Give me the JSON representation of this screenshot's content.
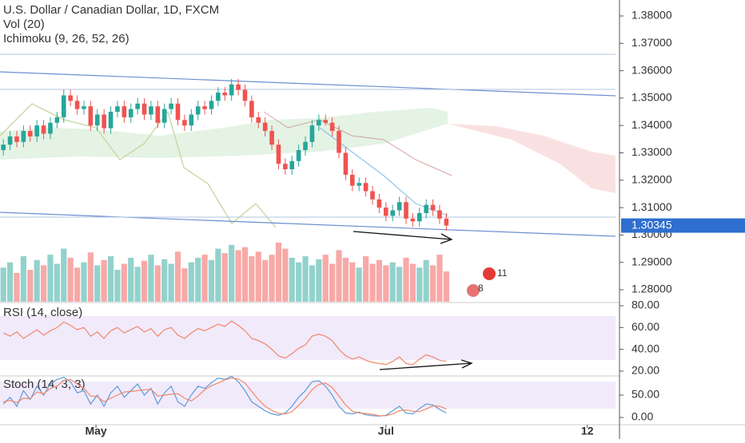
{
  "chart_data": [
    {
      "type": "candlestick",
      "title": "U.S. Dollar / Canadian Dollar, 1D, FXCM",
      "indicators": [
        "Ichimoku (9, 26, 52, 26)"
      ],
      "up_color": "#26a69a",
      "down_color": "#ef5350",
      "open": [
        1.331,
        1.333,
        1.336,
        1.334,
        1.338,
        1.336,
        1.34,
        1.337,
        1.341,
        1.343,
        1.351,
        1.349,
        1.346,
        1.347,
        1.34,
        1.344,
        1.339,
        1.345,
        1.347,
        1.343,
        1.346,
        1.348,
        1.344,
        1.347,
        1.341,
        1.346,
        1.348,
        1.342,
        1.34,
        1.344,
        1.347,
        1.346,
        1.349,
        1.352,
        1.351,
        1.355,
        1.353,
        1.349,
        1.343,
        1.341,
        1.338,
        1.333,
        1.326,
        1.324,
        1.327,
        1.331,
        1.334,
        1.34,
        1.342,
        1.341,
        1.338,
        1.33,
        1.322,
        1.318,
        1.319,
        1.316,
        1.313,
        1.31,
        1.307,
        1.309,
        1.312,
        1.306,
        1.305,
        1.308,
        1.311,
        1.309,
        1.306
      ],
      "high": [
        1.335,
        1.338,
        1.338,
        1.34,
        1.34,
        1.342,
        1.342,
        1.343,
        1.345,
        1.353,
        1.353,
        1.351,
        1.349,
        1.349,
        1.346,
        1.346,
        1.347,
        1.349,
        1.349,
        1.348,
        1.35,
        1.35,
        1.349,
        1.349,
        1.348,
        1.35,
        1.35,
        1.344,
        1.346,
        1.349,
        1.349,
        1.351,
        1.354,
        1.354,
        1.357,
        1.357,
        1.355,
        1.351,
        1.345,
        1.343,
        1.34,
        1.335,
        1.328,
        1.329,
        1.333,
        1.336,
        1.342,
        1.344,
        1.344,
        1.343,
        1.34,
        1.332,
        1.324,
        1.321,
        1.321,
        1.318,
        1.315,
        1.312,
        1.311,
        1.314,
        1.314,
        1.308,
        1.31,
        1.313,
        1.313,
        1.311,
        1.308
      ],
      "low": [
        1.329,
        1.331,
        1.332,
        1.332,
        1.334,
        1.334,
        1.335,
        1.335,
        1.339,
        1.341,
        1.347,
        1.344,
        1.344,
        1.338,
        1.338,
        1.337,
        1.337,
        1.343,
        1.341,
        1.341,
        1.344,
        1.342,
        1.342,
        1.339,
        1.339,
        1.344,
        1.34,
        1.338,
        1.338,
        1.342,
        1.344,
        1.344,
        1.347,
        1.349,
        1.349,
        1.351,
        1.347,
        1.341,
        1.339,
        1.336,
        1.331,
        1.324,
        1.322,
        1.322,
        1.325,
        1.329,
        1.332,
        1.338,
        1.34,
        1.336,
        1.328,
        1.32,
        1.316,
        1.316,
        1.314,
        1.311,
        1.308,
        1.305,
        1.305,
        1.307,
        1.304,
        1.303,
        1.303,
        1.306,
        1.307,
        1.304,
        1.3015
      ],
      "close": [
        1.333,
        1.336,
        1.334,
        1.338,
        1.336,
        1.34,
        1.337,
        1.341,
        1.343,
        1.351,
        1.349,
        1.346,
        1.347,
        1.34,
        1.344,
        1.339,
        1.345,
        1.347,
        1.343,
        1.346,
        1.348,
        1.344,
        1.347,
        1.341,
        1.346,
        1.348,
        1.342,
        1.34,
        1.344,
        1.347,
        1.346,
        1.349,
        1.352,
        1.351,
        1.355,
        1.353,
        1.349,
        1.343,
        1.341,
        1.338,
        1.333,
        1.326,
        1.324,
        1.327,
        1.331,
        1.334,
        1.34,
        1.342,
        1.341,
        1.338,
        1.33,
        1.322,
        1.318,
        1.319,
        1.316,
        1.313,
        1.31,
        1.307,
        1.309,
        1.312,
        1.306,
        1.305,
        1.308,
        1.311,
        1.309,
        1.306,
        1.30345
      ],
      "last_price": 1.30345,
      "events": [
        "11",
        "8"
      ],
      "xlim": [
        -0.5,
        91.8
      ],
      "xticks": [
        {
          "value": 13.8,
          "label": "May"
        },
        {
          "value": 57,
          "label": "Jul"
        },
        {
          "value": 87,
          "label": "12"
        }
      ],
      "ylim": [
        1.27563,
        1.38583
      ],
      "yticks": [
        {
          "value": 1.28,
          "label": "1.28000"
        },
        {
          "value": 1.29,
          "label": "1.29000"
        },
        {
          "value": 1.3,
          "label": "1.30000"
        },
        {
          "value": 1.31,
          "label": "1.31000"
        },
        {
          "value": 1.32,
          "label": "1.32000"
        },
        {
          "value": 1.33,
          "label": "1.33000"
        },
        {
          "value": 1.34,
          "label": "1.34000"
        },
        {
          "value": 1.35,
          "label": "1.35000"
        },
        {
          "value": 1.36,
          "label": "1.36000"
        },
        {
          "value": 1.37,
          "label": "1.37000"
        },
        {
          "value": 1.38,
          "label": "1.38000"
        }
      ]
    },
    {
      "type": "bar",
      "title": "Vol (20)",
      "ylim": [
        0,
        100
      ],
      "values": [
        45,
        52,
        38,
        60,
        42,
        55,
        48,
        62,
        50,
        70,
        58,
        45,
        52,
        65,
        48,
        55,
        60,
        42,
        50,
        58,
        46,
        54,
        62,
        48,
        56,
        50,
        66,
        44,
        52,
        58,
        62,
        55,
        70,
        64,
        75,
        68,
        72,
        60,
        66,
        55,
        62,
        78,
        70,
        58,
        52,
        60,
        48,
        56,
        62,
        50,
        68,
        58,
        52,
        45,
        60,
        50,
        55,
        48,
        52,
        46,
        58,
        50,
        45,
        55,
        48,
        62,
        40
      ]
    },
    {
      "type": "line",
      "title": "RSI (14, close)",
      "color": "#f0876a",
      "ylim": [
        16.3,
        82.2
      ],
      "values": [
        55,
        52,
        56,
        50,
        54,
        58,
        53,
        57,
        60,
        65,
        62,
        58,
        60,
        52,
        56,
        50,
        57,
        60,
        55,
        58,
        61,
        56,
        59,
        52,
        58,
        60,
        53,
        50,
        55,
        59,
        57,
        60,
        63,
        61,
        66,
        62,
        57,
        50,
        48,
        45,
        40,
        34,
        32,
        36,
        41,
        44,
        52,
        54,
        52,
        48,
        40,
        34,
        31,
        33,
        30,
        28,
        27,
        26,
        29,
        33,
        27,
        26,
        31,
        35,
        33,
        30,
        29
      ],
      "yticks": [
        {
          "value": 20,
          "label": "20.00"
        },
        {
          "value": 40,
          "label": "40.00"
        },
        {
          "value": 60,
          "label": "60.00"
        },
        {
          "value": 80,
          "label": "80.00"
        }
      ]
    },
    {
      "type": "line",
      "title": "Stoch (14, 3, 3)",
      "ylim": [
        -16,
        91
      ],
      "series": [
        {
          "color": "#5b9bd5",
          "values": [
            30,
            45,
            25,
            60,
            40,
            70,
            50,
            75,
            85,
            90,
            80,
            55,
            60,
            30,
            50,
            25,
            55,
            70,
            45,
            60,
            75,
            50,
            65,
            30,
            55,
            70,
            35,
            25,
            50,
            70,
            65,
            78,
            88,
            85,
            92,
            80,
            60,
            35,
            25,
            15,
            8,
            5,
            10,
            25,
            45,
            60,
            80,
            82,
            70,
            50,
            25,
            10,
            8,
            12,
            6,
            4,
            3,
            5,
            15,
            25,
            10,
            8,
            20,
            30,
            28,
            18,
            10
          ]
        },
        {
          "color": "#f0876a",
          "values": [
            35,
            38,
            33,
            43,
            42,
            57,
            53,
            65,
            70,
            83,
            85,
            75,
            65,
            48,
            47,
            35,
            43,
            50,
            57,
            58,
            60,
            62,
            63,
            48,
            50,
            52,
            53,
            43,
            37,
            48,
            62,
            71,
            77,
            84,
            88,
            86,
            77,
            58,
            40,
            25,
            16,
            9,
            8,
            13,
            27,
            43,
            62,
            74,
            77,
            67,
            48,
            28,
            14,
            10,
            9,
            7,
            4,
            4,
            8,
            15,
            17,
            14,
            13,
            19,
            26,
            25,
            19
          ]
        }
      ],
      "yticks": [
        {
          "value": 0,
          "label": "0.00"
        },
        {
          "value": 50,
          "label": "50.00"
        }
      ]
    }
  ]
}
